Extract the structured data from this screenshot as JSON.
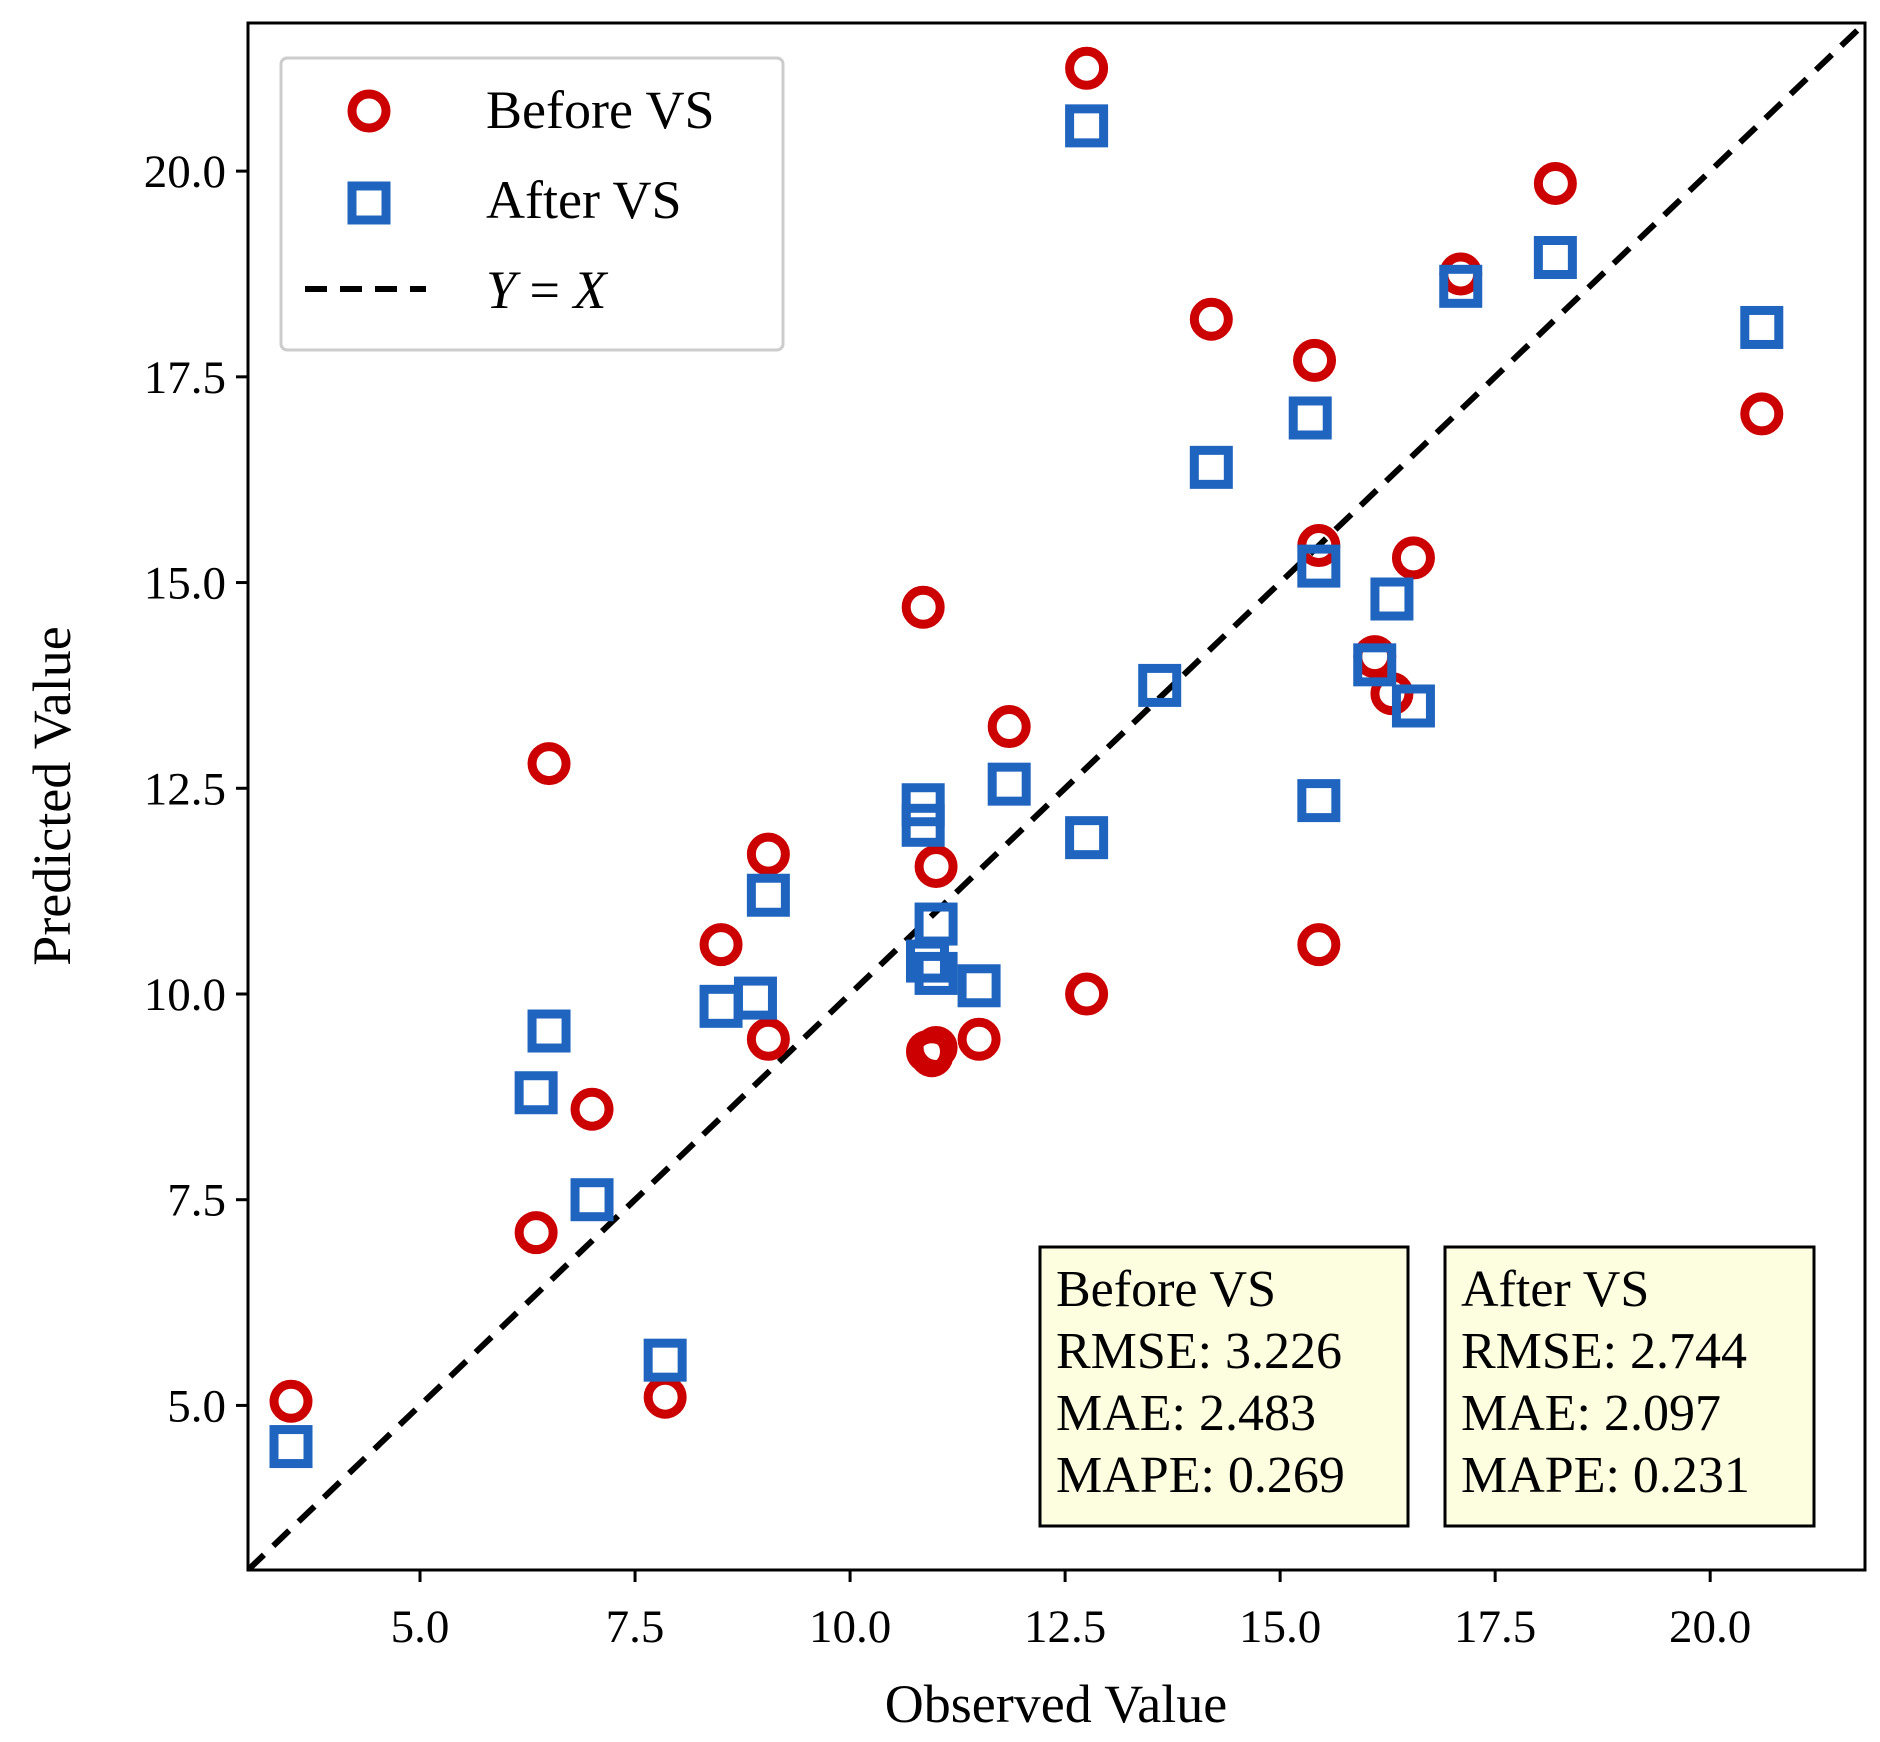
{
  "chart_data": {
    "type": "scatter",
    "title": "",
    "xlabel": "Observed Value",
    "ylabel": "Predicted Value",
    "xlim": [
      3.0,
      21.8
    ],
    "ylim": [
      3.0,
      21.8
    ],
    "xticks": [
      5.0,
      7.5,
      10.0,
      12.5,
      15.0,
      17.5,
      20.0
    ],
    "yticks": [
      5.0,
      7.5,
      10.0,
      12.5,
      15.0,
      17.5,
      20.0
    ],
    "tick_labels": [
      "5.0",
      "7.5",
      "10.0",
      "12.5",
      "15.0",
      "17.5",
      "20.0"
    ],
    "grid": false,
    "legend": {
      "position": "top-left",
      "entries": [
        {
          "label": "Before VS",
          "marker": "circle",
          "color": "#cc0000"
        },
        {
          "label": "After VS",
          "marker": "square",
          "color": "#1f64bf"
        },
        {
          "label_y": "Y",
          "label_eq": " = ",
          "label_x": "X",
          "marker": "dashed-line",
          "color": "#000000"
        }
      ]
    },
    "reference_line": {
      "type": "y=x",
      "color": "#000000",
      "style": "dashed"
    },
    "series": [
      {
        "name": "Before VS",
        "marker": "circle",
        "color": "#cc0000",
        "points": [
          [
            3.5,
            5.05
          ],
          [
            6.35,
            7.1
          ],
          [
            6.5,
            12.8
          ],
          [
            7.0,
            8.6
          ],
          [
            7.85,
            5.1
          ],
          [
            8.5,
            10.6
          ],
          [
            9.05,
            9.45
          ],
          [
            9.05,
            11.7
          ],
          [
            10.85,
            14.7
          ],
          [
            10.9,
            9.3
          ],
          [
            10.95,
            9.25
          ],
          [
            11.0,
            9.35
          ],
          [
            11.0,
            11.55
          ],
          [
            11.5,
            9.45
          ],
          [
            11.85,
            13.25
          ],
          [
            12.75,
            10.0
          ],
          [
            12.75,
            21.25
          ],
          [
            14.2,
            18.2
          ],
          [
            15.4,
            17.7
          ],
          [
            15.45,
            15.45
          ],
          [
            15.45,
            10.6
          ],
          [
            16.1,
            14.1
          ],
          [
            16.3,
            13.65
          ],
          [
            16.55,
            15.3
          ],
          [
            17.1,
            18.75
          ],
          [
            18.2,
            19.85
          ],
          [
            20.6,
            17.05
          ]
        ]
      },
      {
        "name": "After VS",
        "marker": "square",
        "color": "#1f64bf",
        "points": [
          [
            3.5,
            4.5
          ],
          [
            6.35,
            8.8
          ],
          [
            6.5,
            9.55
          ],
          [
            7.0,
            7.5
          ],
          [
            7.85,
            5.55
          ],
          [
            8.5,
            9.85
          ],
          [
            8.9,
            9.95
          ],
          [
            9.05,
            11.2
          ],
          [
            10.85,
            12.05
          ],
          [
            10.85,
            12.3
          ],
          [
            10.9,
            10.4
          ],
          [
            11.0,
            10.85
          ],
          [
            11.0,
            10.25
          ],
          [
            11.5,
            10.1
          ],
          [
            11.85,
            12.55
          ],
          [
            12.75,
            11.9
          ],
          [
            12.75,
            20.55
          ],
          [
            13.6,
            13.75
          ],
          [
            14.2,
            16.4
          ],
          [
            15.35,
            17.0
          ],
          [
            15.45,
            15.2
          ],
          [
            15.45,
            12.35
          ],
          [
            16.1,
            14.0
          ],
          [
            16.3,
            14.8
          ],
          [
            16.55,
            13.5
          ],
          [
            17.1,
            18.6
          ],
          [
            18.2,
            18.95
          ],
          [
            20.6,
            18.1
          ]
        ]
      }
    ],
    "stats_boxes": [
      {
        "title": "Before VS",
        "lines": [
          "RMSE: 3.226",
          "MAE: 2.483",
          "MAPE: 0.269"
        ]
      },
      {
        "title": "After VS",
        "lines": [
          "RMSE: 2.744",
          "MAE: 2.097",
          "MAPE: 0.231"
        ]
      }
    ]
  }
}
